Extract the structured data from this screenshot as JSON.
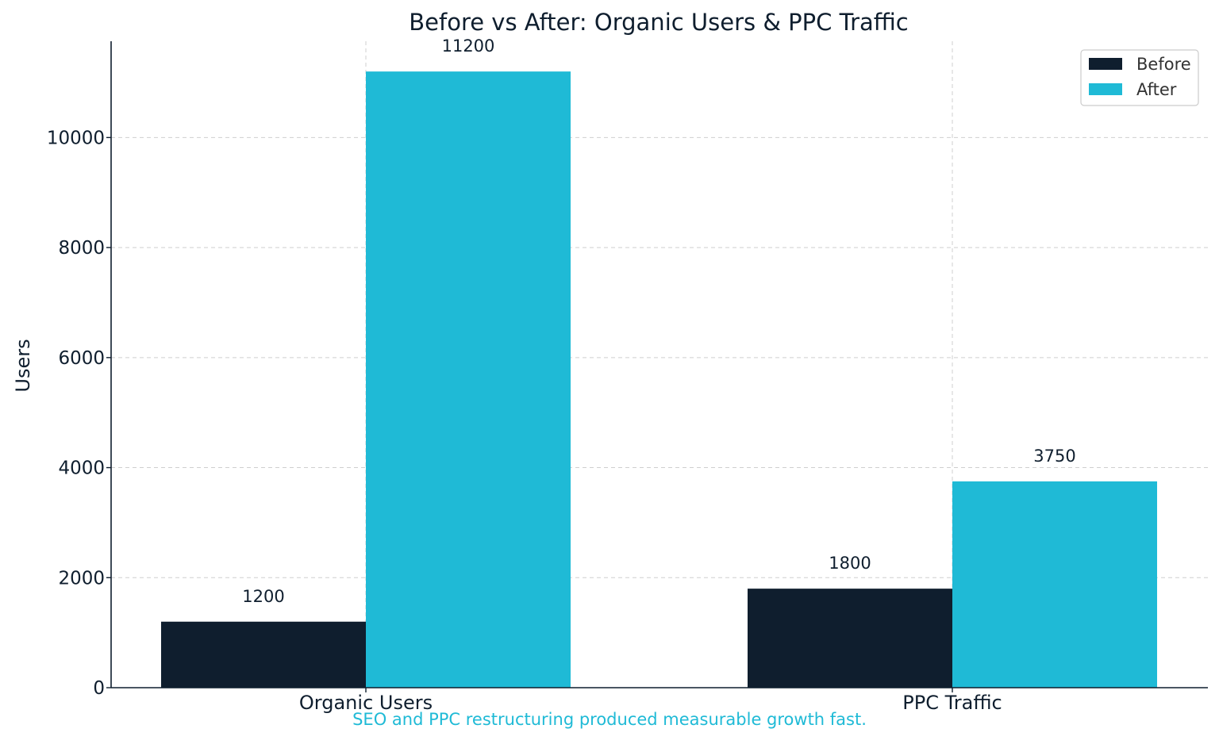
{
  "chart_data": {
    "type": "bar",
    "title": "Before vs After: Organic Users & PPC Traffic",
    "xlabel": "",
    "ylabel": "Users",
    "categories": [
      "Organic Users",
      "PPC Traffic"
    ],
    "series": [
      {
        "name": "Before",
        "values": [
          1200,
          1800
        ],
        "color": "#0f1e2e"
      },
      {
        "name": "After",
        "values": [
          11200,
          3750
        ],
        "color": "#1fbad6"
      }
    ],
    "ylim": [
      0,
      11750
    ],
    "yticks": [
      0,
      2000,
      4000,
      6000,
      8000,
      10000
    ],
    "grid": true,
    "legend_position": "top-right",
    "data_labels": true,
    "annotation": "SEO and PPC restructuring produced measurable growth fast.",
    "annotation_color": "#1fbad6",
    "text_color": "#0f1e2e"
  }
}
